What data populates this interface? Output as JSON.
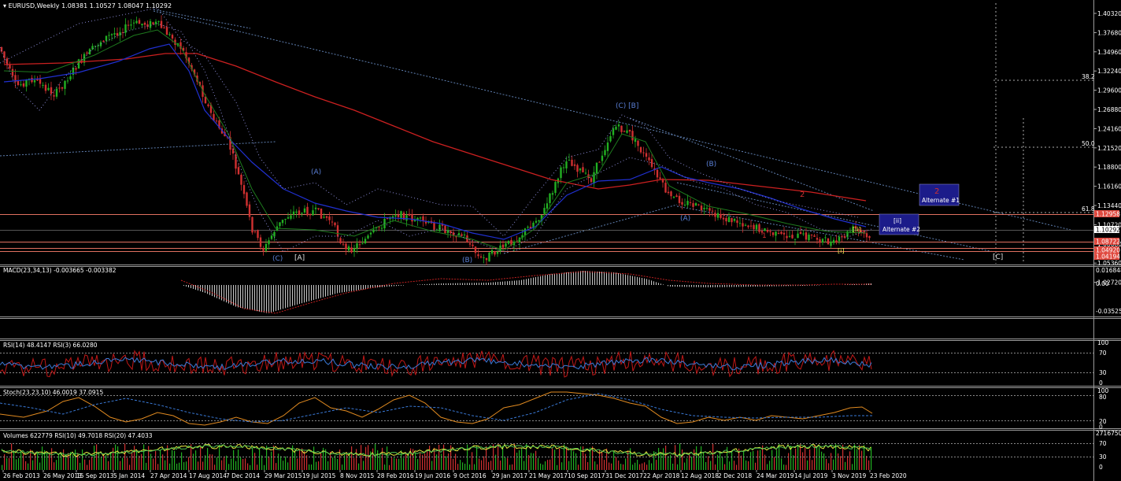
{
  "colors": {
    "background": "#000000",
    "bull_candle": "#22b022",
    "bear_candle": "#d03030",
    "sma_red": "#cc2020",
    "ma_blue": "#2030d0",
    "channel": "#5f7fb0",
    "hline": "#e07060",
    "price_box": "#e04a40",
    "label_box": "#1c1c8a"
  },
  "main": {
    "header": "EURUSD,Weekly  1.08381 1.10527 1.08047 1.10292",
    "price_ticks": [
      "1.40320",
      "1.37680",
      "1.34960",
      "1.32240",
      "1.29600",
      "1.26880",
      "1.24160",
      "1.21520",
      "1.18800",
      "1.16160",
      "1.13440",
      "1.10720",
      "1.08080",
      "1.05360",
      "1.02720"
    ],
    "price_boxes": [
      "1.12958",
      "1.10292",
      "1.08722",
      "1.04920",
      "1.04194"
    ],
    "fib_labels": [
      "38.2",
      "50.0",
      "61.8"
    ],
    "wave_labels": {
      "cb": "(C) [B]",
      "a1": "(A)",
      "c1": "(C)",
      "A1": "[A]",
      "b1": "(B)",
      "e1": "(B)",
      "a2": "(A)",
      "ii": "[ii]",
      "i": "[i]",
      "C": "[C]",
      "red1": "1",
      "red2": "2"
    },
    "alternate_boxes": [
      {
        "top": "[ii]",
        "bottom": "Alternate #2"
      },
      {
        "top": "2",
        "bottom": "Alternate #1"
      }
    ]
  },
  "indicators": {
    "macd": {
      "header": "MACD(23,34,13) -0.003665 -0.003382",
      "ticks": [
        "0.016848",
        "0.00",
        "-0.03525"
      ]
    },
    "rsi": {
      "header": "RSI(14) 48.4147  RSI(3) 66.0280",
      "ticks": [
        "100",
        "70",
        "30",
        "0"
      ]
    },
    "stoch": {
      "header": "Stoch(23,23,10) 46.0019 37.0915",
      "ticks": [
        "100",
        "80",
        "20",
        "0"
      ]
    },
    "volumes": {
      "header": "Volumes 622779  RSI(10) 49.7018  RSI(20) 47.4033",
      "ticks": [
        "2716750",
        "70",
        "30",
        "0"
      ]
    }
  },
  "time_axis": [
    "26 Feb 2013",
    "26 May 2013",
    "15 Sep 2013",
    "5 Jan 2014",
    "27 Apr 2014",
    "17 Aug 2014",
    "7 Dec 2014",
    "29 Mar 2015",
    "19 Jul 2015",
    "8 Nov 2015",
    "28 Feb 2016",
    "19 Jun 2016",
    "9 Oct 2016",
    "29 Jan 2017",
    "21 May 2017",
    "10 Sep 2017",
    "31 Dec 2017",
    "22 Apr 2018",
    "12 Aug 2018",
    "2 Dec 2018",
    "24 Mar 2019",
    "14 Jul 2019",
    "3 Nov 2019",
    "23 Feb 2020"
  ]
}
